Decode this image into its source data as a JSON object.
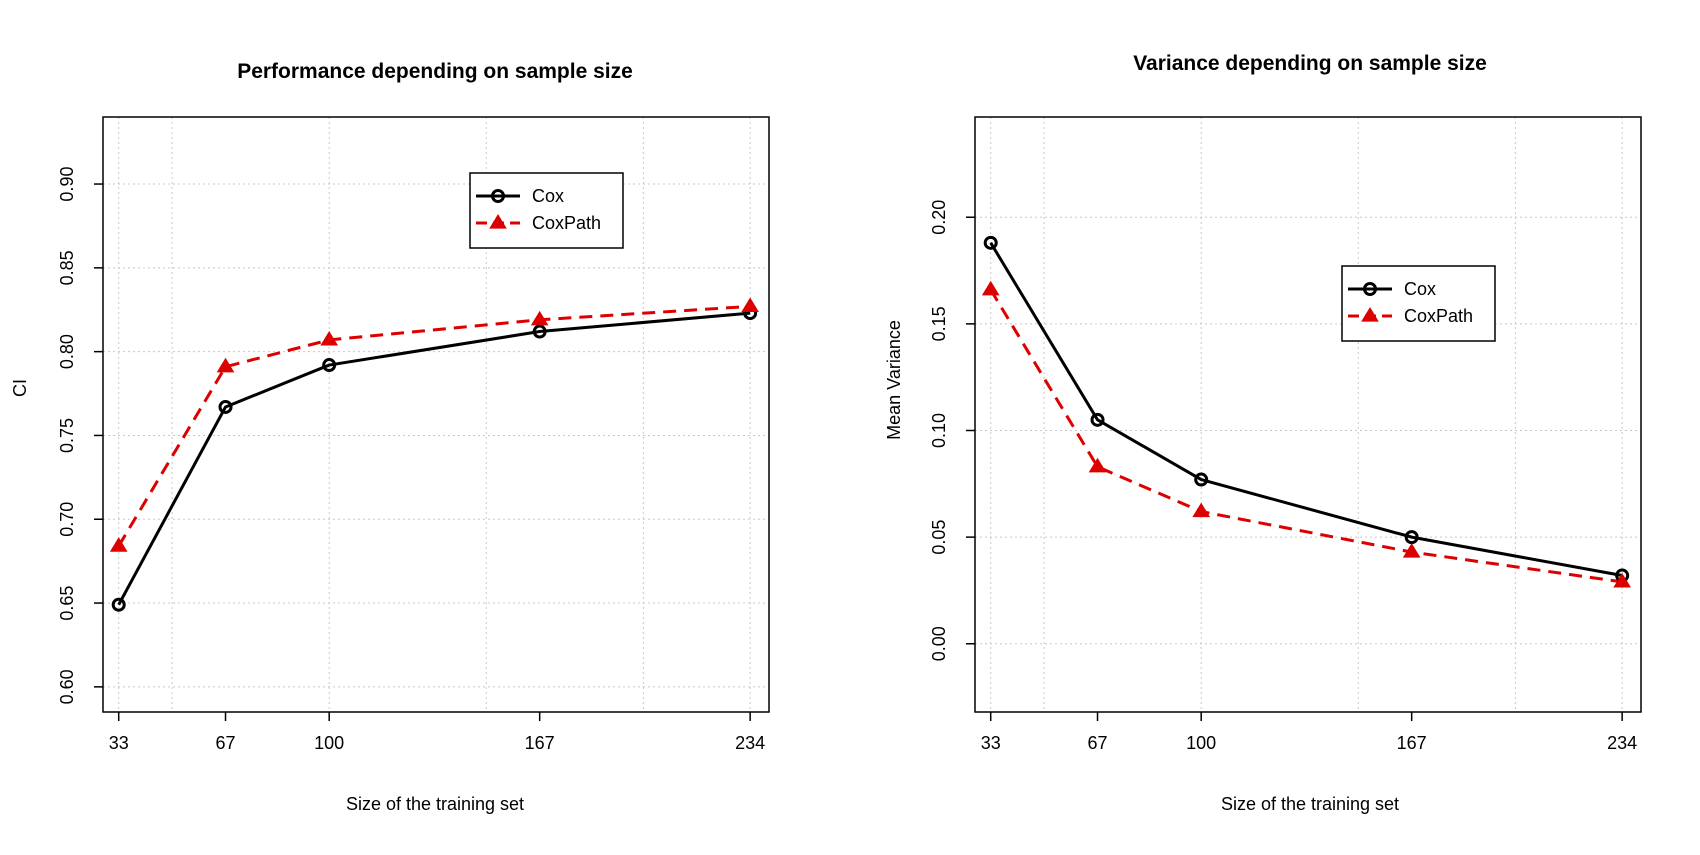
{
  "chart_data": [
    {
      "type": "line",
      "title": "Performance depending on sample size",
      "xlabel": "Size of the training set",
      "ylabel": "CI",
      "x": [
        33,
        67,
        100,
        167,
        234
      ],
      "x_tick_labels": [
        "33",
        "67",
        "100",
        "167",
        "234"
      ],
      "xlim": [
        28,
        240
      ],
      "ylim": [
        0.585,
        0.94
      ],
      "y_ticks": [
        0.6,
        0.65,
        0.7,
        0.75,
        0.8,
        0.85,
        0.9
      ],
      "y_tick_labels": [
        "0.60",
        "0.65",
        "0.70",
        "0.75",
        "0.80",
        "0.85",
        "0.90"
      ],
      "x_grid": [
        33,
        50,
        100,
        150,
        200,
        234
      ],
      "grid": true,
      "legend_position": "top-right",
      "series": [
        {
          "name": "Cox",
          "color": "#000000",
          "style": "solid",
          "marker": "circle",
          "values": [
            0.649,
            0.767,
            0.792,
            0.812,
            0.823
          ]
        },
        {
          "name": "CoxPath",
          "color": "#dd0000",
          "style": "dashed",
          "marker": "triangle",
          "values": [
            0.684,
            0.791,
            0.807,
            0.819,
            0.827
          ]
        }
      ]
    },
    {
      "type": "line",
      "title": "Variance depending on sample size",
      "xlabel": "Size of the training set",
      "ylabel": "Mean Variance",
      "x": [
        33,
        67,
        100,
        167,
        234
      ],
      "x_tick_labels": [
        "33",
        "67",
        "100",
        "167",
        "234"
      ],
      "xlim": [
        28,
        240
      ],
      "ylim": [
        -0.032,
        0.247
      ],
      "y_ticks": [
        0.0,
        0.05,
        0.1,
        0.15,
        0.2
      ],
      "y_tick_labels": [
        "0.00",
        "0.05",
        "0.10",
        "0.15",
        "0.20"
      ],
      "x_grid": [
        33,
        50,
        100,
        150,
        200,
        234
      ],
      "grid": true,
      "legend_position": "top-right",
      "series": [
        {
          "name": "Cox",
          "color": "#000000",
          "style": "solid",
          "marker": "circle",
          "values": [
            0.188,
            0.105,
            0.077,
            0.05,
            0.032
          ]
        },
        {
          "name": "CoxPath",
          "color": "#dd0000",
          "style": "dashed",
          "marker": "triangle",
          "values": [
            0.166,
            0.083,
            0.062,
            0.043,
            0.029
          ]
        }
      ]
    }
  ]
}
